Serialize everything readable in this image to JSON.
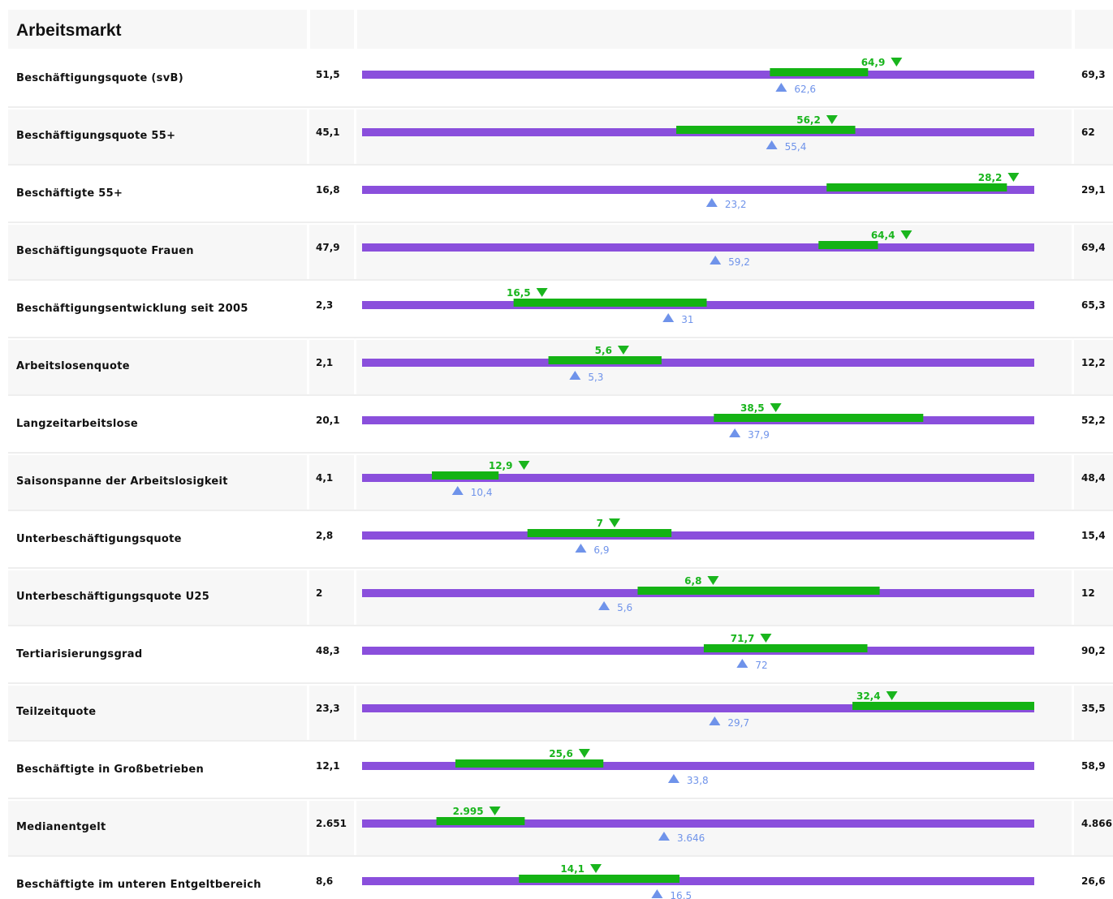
{
  "chart_data": {
    "type": "bar",
    "title": "Arbeitsmarkt",
    "colors": {
      "range_bar": "#8a4fdc",
      "green_range": "#14b314",
      "green_marker": "#19b51d",
      "blue_marker": "#6f93ea",
      "row_alt": "#f7f7f7"
    },
    "rows": [
      {
        "label": "Beschäftigungsquote (svB)",
        "min": 51.5,
        "min_label": "51,5",
        "max": 69.3,
        "max_label": "69,3",
        "green_from": 62.3,
        "green_to": 64.9,
        "green_marker": 64.9,
        "green_label": "64,9",
        "blue_marker": 62.6,
        "blue_label": "62,6"
      },
      {
        "label": "Beschäftigungsquote 55+",
        "min": 45.1,
        "min_label": "45,1",
        "max": 62,
        "max_label": "62",
        "green_from": 53.0,
        "green_to": 57.5,
        "green_marker": 56.2,
        "green_label": "56,2",
        "blue_marker": 55.4,
        "blue_label": "55,4"
      },
      {
        "label": "Beschäftigte 55+",
        "min": 16.8,
        "min_label": "16,8",
        "max": 29.1,
        "max_label": "29,1",
        "green_from": 25.3,
        "green_to": 28.6,
        "green_marker": 28.2,
        "green_label": "28,2",
        "blue_marker": 23.2,
        "blue_label": "23,2"
      },
      {
        "label": "Beschäftigungsquote Frauen",
        "min": 47.9,
        "min_label": "47,9",
        "max": 69.4,
        "max_label": "69,4",
        "green_from": 62.5,
        "green_to": 64.4,
        "green_marker": 64.4,
        "green_label": "64,4",
        "blue_marker": 59.2,
        "blue_label": "59,2"
      },
      {
        "label": "Beschäftigungsentwicklung seit 2005",
        "min": 2.3,
        "min_label": "2,3",
        "max": 65.3,
        "max_label": "65,3",
        "green_from": 16.5,
        "green_to": 34.6,
        "green_marker": 16.5,
        "green_label": "16,5",
        "blue_marker": 31,
        "blue_label": "31"
      },
      {
        "label": "Arbeitslosenquote",
        "min": 2.1,
        "min_label": "2,1",
        "max": 12.2,
        "max_label": "12,2",
        "green_from": 4.9,
        "green_to": 6.6,
        "green_marker": 5.6,
        "green_label": "5,6",
        "blue_marker": 5.3,
        "blue_label": "5,3"
      },
      {
        "label": "Langzeitarbeitslose",
        "min": 20.1,
        "min_label": "20,1",
        "max": 52.2,
        "max_label": "52,2",
        "green_from": 36.9,
        "green_to": 46.9,
        "green_marker": 38.5,
        "green_label": "38,5",
        "blue_marker": 37.9,
        "blue_label": "37,9"
      },
      {
        "label": "Saisonspanne der Arbeitslosigkeit",
        "min": 4.1,
        "min_label": "4,1",
        "max": 48.4,
        "max_label": "48,4",
        "green_from": 8.7,
        "green_to": 13.1,
        "green_marker": 12.9,
        "green_label": "12,9",
        "blue_marker": 10.4,
        "blue_label": "10,4"
      },
      {
        "label": "Unterbeschäftigungsquote",
        "min": 2.8,
        "min_label": "2,8",
        "max": 15.4,
        "max_label": "15,4",
        "green_from": 5.9,
        "green_to": 8.6,
        "green_marker": 7,
        "green_label": "7",
        "blue_marker": 6.9,
        "blue_label": "6,9"
      },
      {
        "label": "Unterbeschäftigungsquote U25",
        "min": 2,
        "min_label": "2",
        "max": 12,
        "max_label": "12",
        "green_from": 6.1,
        "green_to": 9.7,
        "green_marker": 6.8,
        "green_label": "6,8",
        "blue_marker": 5.6,
        "blue_label": "5,6"
      },
      {
        "label": "Tertiarisierungsgrad",
        "min": 48.3,
        "min_label": "48,3",
        "max": 90.2,
        "max_label": "90,2",
        "green_from": 69.6,
        "green_to": 79.8,
        "green_marker": 71.7,
        "green_label": "71,7",
        "blue_marker": 72,
        "blue_label": "72"
      },
      {
        "label": "Teilzeitquote",
        "min": 23.3,
        "min_label": "23,3",
        "max": 35.5,
        "max_label": "35,5",
        "green_from": 32.2,
        "green_to": 35.5,
        "green_marker": 32.4,
        "green_label": "32,4",
        "blue_marker": 29.7,
        "blue_label": "29,7"
      },
      {
        "label": "Beschäftigte in Großbetrieben",
        "min": 12.1,
        "min_label": "12,1",
        "max": 58.9,
        "max_label": "58,9",
        "green_from": 18.6,
        "green_to": 28.9,
        "green_marker": 25.6,
        "green_label": "25,6",
        "blue_marker": 33.8,
        "blue_label": "33,8"
      },
      {
        "label": "Medianentgelt",
        "min": 2651,
        "min_label": "2.651",
        "max": 4866,
        "max_label": "4.866",
        "green_from": 2896,
        "green_to": 3187,
        "green_marker": 2995,
        "green_label": "2.995",
        "blue_marker": 3646,
        "blue_label": "3.646"
      },
      {
        "label": "Beschäftigte im unteren Entgeltbereich",
        "min": 8.6,
        "min_label": "8,6",
        "max": 26.6,
        "max_label": "26,6",
        "green_from": 12.8,
        "green_to": 17.1,
        "green_marker": 14.1,
        "green_label": "14,1",
        "blue_marker": 16.5,
        "blue_label": "16,5"
      }
    ]
  }
}
